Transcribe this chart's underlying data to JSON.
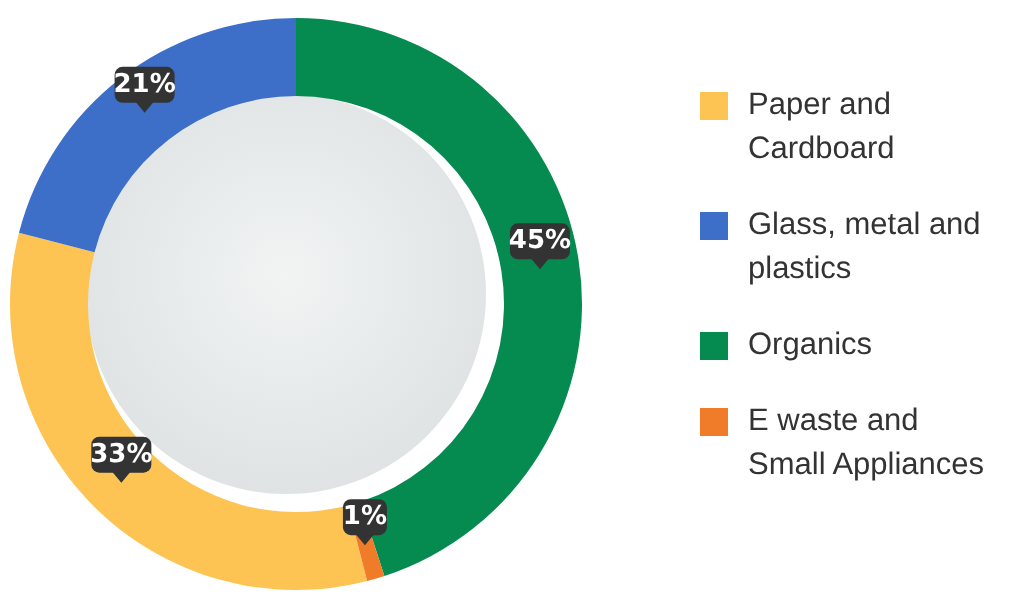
{
  "chart_data": {
    "type": "donut",
    "categories": [
      "Paper and Cardboard",
      "Glass, metal and plastics",
      "Organics",
      "E waste and Small Appliances"
    ],
    "values": [
      33,
      21,
      45,
      1
    ],
    "colors": [
      "#fdc453",
      "#3d6fc8",
      "#058a4f",
      "#f07c2a"
    ],
    "value_labels": [
      "33%",
      "21%",
      "45%",
      "1%"
    ],
    "legend": "right"
  }
}
